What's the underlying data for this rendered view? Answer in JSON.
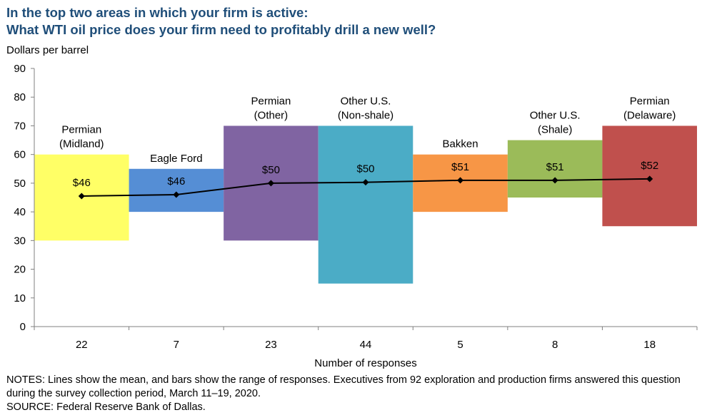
{
  "title_line1": "In the top two areas in which your firm is active:",
  "title_line2": "What WTI oil price does your firm need to profitably drill a new well?",
  "notes": "NOTES: Lines show the mean, and bars show the range of responses. Executives from 92 exploration and production firms answered this question during the survey collection period, March 11–19, 2020.",
  "source": "SOURCE: Federal Reserve Bank of Dallas.",
  "chart_data": {
    "type": "bar",
    "subtype": "floating-range-with-mean-line",
    "ylabel": "Dollars per barrel",
    "xlabel": "Number of responses",
    "ylim": [
      0,
      90
    ],
    "yticks": [
      0,
      10,
      20,
      30,
      40,
      50,
      60,
      70,
      80,
      90
    ],
    "categories": [
      {
        "label_lines": [
          "Permian",
          "(Midland)"
        ],
        "responses": "22",
        "low": 30,
        "high": 60,
        "mean": 45.5,
        "mean_label": "$46",
        "color": "#ffff66"
      },
      {
        "label_lines": [
          "Eagle Ford"
        ],
        "responses": "7",
        "low": 40,
        "high": 55,
        "mean": 46,
        "mean_label": "$46",
        "color": "#558ed5"
      },
      {
        "label_lines": [
          "Permian",
          "(Other)"
        ],
        "responses": "23",
        "low": 30,
        "high": 70,
        "mean": 50,
        "mean_label": "$50",
        "color": "#8064a2"
      },
      {
        "label_lines": [
          "Other U.S.",
          "(Non-shale)"
        ],
        "responses": "44",
        "low": 15,
        "high": 70,
        "mean": 50.3,
        "mean_label": "$50",
        "color": "#4bacc6"
      },
      {
        "label_lines": [
          "Bakken"
        ],
        "responses": "5",
        "low": 40,
        "high": 60,
        "mean": 51,
        "mean_label": "$51",
        "color": "#f79646"
      },
      {
        "label_lines": [
          "Other U.S.",
          "(Shale)"
        ],
        "responses": "8",
        "low": 45,
        "high": 65,
        "mean": 51,
        "mean_label": "$51",
        "color": "#9bbb59"
      },
      {
        "label_lines": [
          "Permian",
          "(Delaware)"
        ],
        "responses": "18",
        "low": 35,
        "high": 70,
        "mean": 51.5,
        "mean_label": "$52",
        "color": "#c0504d"
      }
    ]
  }
}
